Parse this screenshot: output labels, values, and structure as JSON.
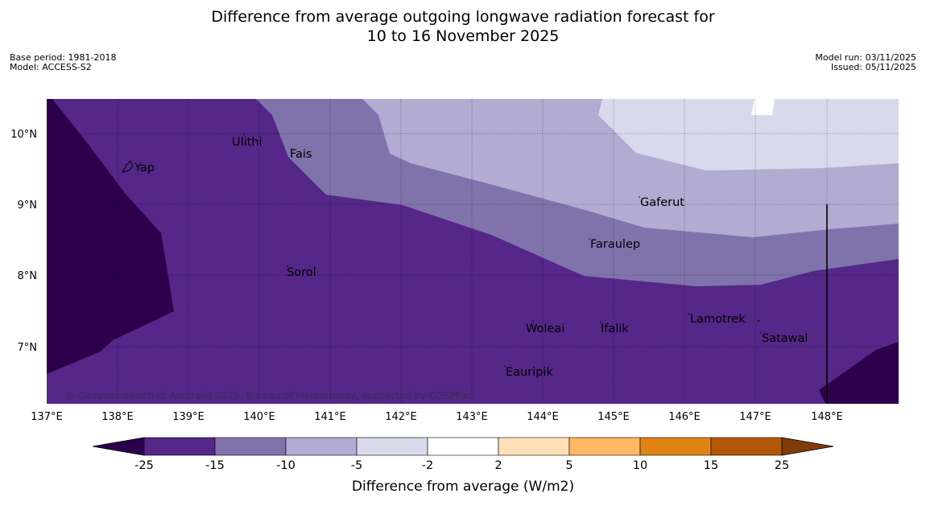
{
  "title": {
    "line1": "Difference from average outgoing longwave radiation forecast for",
    "line2": "10 to 16 November 2025"
  },
  "meta": {
    "base_period": "Base period: 1981-2018",
    "model": "Model: ACCESS-S2",
    "model_run": "Model run: 03/11/2025",
    "issued": "Issued: 05/11/2025"
  },
  "map": {
    "lat_ticks": [
      "10°N",
      "9°N",
      "8°N",
      "7°N"
    ],
    "lon_ticks": [
      "137°E",
      "138°E",
      "139°E",
      "140°E",
      "141°E",
      "142°E",
      "143°E",
      "144°E",
      "145°E",
      "146°E",
      "147°E",
      "148°E"
    ],
    "places": [
      "Ulithi",
      "Fais",
      "Yap",
      "Gaferut",
      "Faraulep",
      "Sorol",
      "Lamotrek",
      "Woleai",
      "Ifalik",
      "Satawal",
      "Eauripik"
    ],
    "copyright": "© Commonwealth of Australia 2025, Bureau of Meteorology, supported by COSPPac"
  },
  "colorbar": {
    "ticks": [
      "-25",
      "-15",
      "-10",
      "-5",
      "-2",
      "2",
      "5",
      "10",
      "15",
      "25"
    ],
    "label": "Difference from average (W/m2)",
    "colors": {
      "lt_min25": "#2d004b",
      "min25_min15": "#542788",
      "min15_min10": "#8073ac",
      "min10_min5": "#b2abd2",
      "min5_min2": "#d8daeb",
      "min2_2": "#ffffff",
      "b2_5": "#fee0b6",
      "b5_10": "#fdb863",
      "b10_15": "#e08214",
      "b15_25": "#b35806",
      "gt25": "#7f3b08"
    }
  }
}
